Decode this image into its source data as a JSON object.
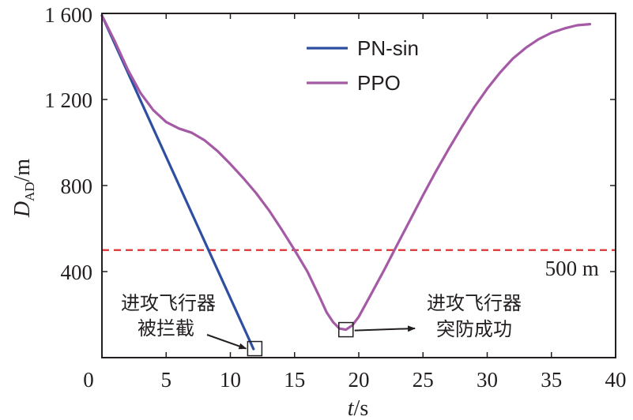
{
  "chart_data": {
    "type": "line",
    "xlabel": "t/s",
    "ylabel": "DAD/m",
    "ylabel_main": "D",
    "ylabel_sub": "AD",
    "ylabel_unit": "/m",
    "xlabel_var": "t",
    "xlabel_unit": "/s",
    "xlim": [
      0,
      40
    ],
    "ylim": [
      0,
      1600
    ],
    "x_ticks": [
      0,
      5,
      10,
      15,
      20,
      25,
      30,
      35,
      40
    ],
    "x_tick_labels": [
      "0",
      "5",
      "10",
      "15",
      "20",
      "25",
      "30",
      "35",
      "40"
    ],
    "y_ticks": [
      400,
      800,
      1200,
      1600
    ],
    "y_tick_labels": [
      "400",
      "800",
      "1 200",
      "1 600"
    ],
    "grid": false,
    "legend_position": "top-center",
    "series": [
      {
        "name": "PN-sin",
        "color": "#2e4fa1",
        "x": [
          0,
          11.8
        ],
        "y": [
          1590,
          40
        ]
      },
      {
        "name": "PPO",
        "color": "#a55aa5",
        "x": [
          0,
          1,
          2,
          3,
          4,
          5,
          6,
          7,
          8,
          9,
          10,
          11,
          12,
          13,
          14,
          15,
          16,
          17,
          17.5,
          18,
          18.5,
          19,
          19.5,
          20,
          21,
          22,
          23,
          24,
          25,
          26,
          27,
          28,
          29,
          30,
          31,
          32,
          33,
          34,
          35,
          36,
          37,
          38
        ],
        "y": [
          1590,
          1470,
          1340,
          1230,
          1150,
          1095,
          1065,
          1045,
          1010,
          960,
          900,
          835,
          765,
          685,
          595,
          500,
          400,
          275,
          210,
          165,
          135,
          130,
          150,
          190,
          300,
          410,
          525,
          640,
          755,
          865,
          970,
          1070,
          1165,
          1250,
          1325,
          1390,
          1440,
          1480,
          1510,
          1530,
          1545,
          1550
        ]
      }
    ],
    "reference_line": {
      "y": 500,
      "label": "500 m",
      "color": "#e03030",
      "style": "dashed"
    },
    "markers": [
      {
        "x": 11.9,
        "y": 42
      },
      {
        "x": 19.0,
        "y": 130
      }
    ],
    "annotations": [
      {
        "lines": [
          "进攻飞行器",
          "被拦截"
        ],
        "points_to_marker": 0
      },
      {
        "lines": [
          "进攻飞行器",
          "突防成功"
        ],
        "points_to_marker": 1
      }
    ]
  }
}
